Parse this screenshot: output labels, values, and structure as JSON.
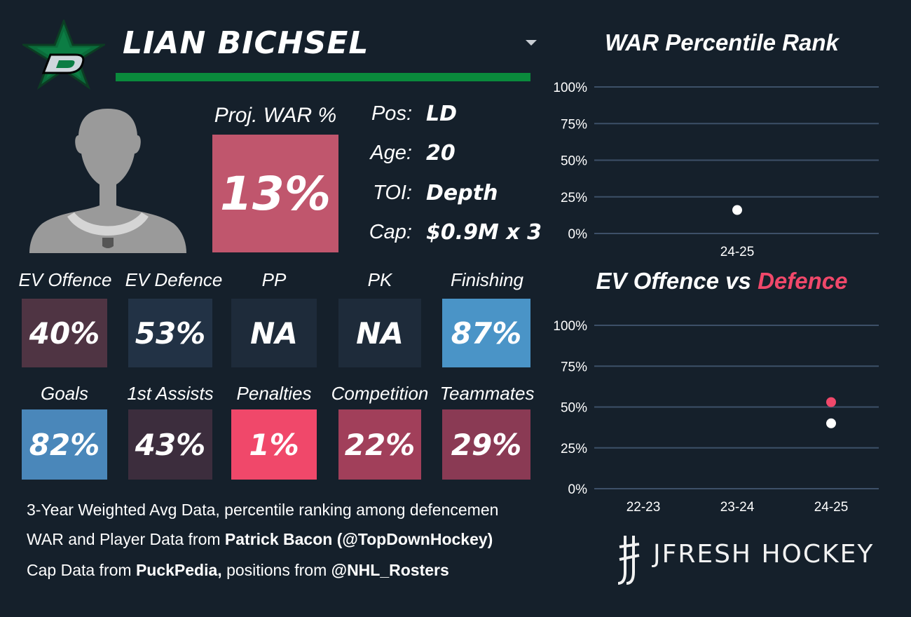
{
  "header": {
    "player_name": "LIAN BICHSEL",
    "team_color": "#0a8a3c"
  },
  "proj_war": {
    "label": "Proj. WAR %",
    "value": "13%",
    "color": "#c0566d"
  },
  "info": [
    {
      "label": "Pos:",
      "value": "LD"
    },
    {
      "label": "Age:",
      "value": "20"
    },
    {
      "label": "TOI:",
      "value": "Depth"
    },
    {
      "label": "Cap:",
      "value": "$0.9M x 3"
    }
  ],
  "stats_row1": [
    {
      "label": "EV Offence",
      "value": "40%",
      "color": "#4f3443"
    },
    {
      "label": "EV Defence",
      "value": "53%",
      "color": "#223245"
    },
    {
      "label": "PP",
      "value": "NA",
      "color": "#1e2b3a"
    },
    {
      "label": "PK",
      "value": "NA",
      "color": "#1e2b3a"
    },
    {
      "label": "Finishing",
      "value": "87%",
      "color": "#4a94c7"
    }
  ],
  "stats_row2": [
    {
      "label": "Goals",
      "value": "82%",
      "color": "#4a87ba"
    },
    {
      "label": "1st Assists",
      "value": "43%",
      "color": "#3c2d3d"
    },
    {
      "label": "Penalties",
      "value": "1%",
      "color": "#f0486a"
    },
    {
      "label": "Competition",
      "value": "22%",
      "color": "#a13f5a"
    },
    {
      "label": "Teammates",
      "value": "29%",
      "color": "#8a3a54"
    }
  ],
  "footer": {
    "line1": "3-Year Weighted Avg Data, percentile ranking among defencemen",
    "line2_pre": "WAR and Player Data from ",
    "line2_bold": "Patrick Bacon (@TopDownHockey)",
    "line3_pre": "Cap Data from ",
    "line3_bold": "PuckPedia,",
    "line3_mid": " positions from ",
    "line3_bold2": "@NHL_Rosters"
  },
  "brand": "JFRESH HOCKEY",
  "chart_data": [
    {
      "type": "scatter",
      "title": "WAR Percentile Rank",
      "categories": [
        "24-25"
      ],
      "series": [
        {
          "values": [
            16
          ],
          "color": "#ffffff"
        }
      ],
      "ylim": [
        0,
        100
      ],
      "yticks": [
        "0%",
        "25%",
        "50%",
        "75%",
        "100%"
      ],
      "grid": true
    },
    {
      "type": "scatter",
      "title_part1": "EV Offence vs ",
      "title_part2": "Defence",
      "title_part2_color": "#f0486a",
      "categories": [
        "22-23",
        "23-24",
        "24-25"
      ],
      "series": [
        {
          "name": "EV Offence",
          "values": [
            null,
            null,
            40
          ],
          "color": "#ffffff"
        },
        {
          "name": "Defence",
          "values": [
            null,
            null,
            53
          ],
          "color": "#f0486a"
        }
      ],
      "ylim": [
        0,
        100
      ],
      "yticks": [
        "0%",
        "25%",
        "50%",
        "75%",
        "100%"
      ],
      "grid": true
    }
  ]
}
